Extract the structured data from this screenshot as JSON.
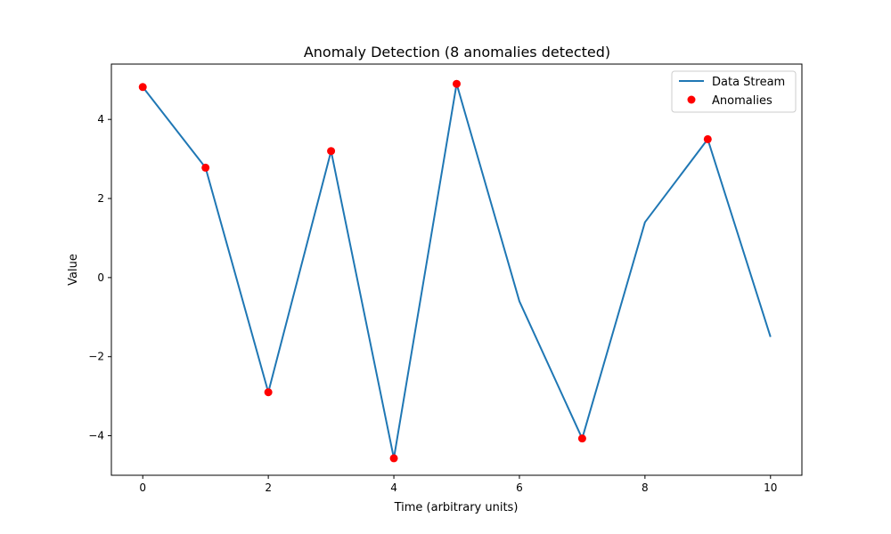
{
  "chart_data": {
    "type": "line",
    "title": "Anomaly Detection (8 anomalies detected)",
    "xlabel": "Time (arbitrary units)",
    "ylabel": "Value",
    "xlim": [
      -0.5,
      10.5
    ],
    "ylim": [
      -5.0,
      5.4
    ],
    "xticks": [
      0,
      2,
      4,
      6,
      8,
      10
    ],
    "yticks": [
      -4,
      -2,
      0,
      2,
      4
    ],
    "grid": false,
    "legend_position": "top-right",
    "series": [
      {
        "name": "Data Stream",
        "kind": "line",
        "color": "#1f77b4",
        "x": [
          0,
          1,
          2,
          3,
          4,
          5,
          6,
          7,
          8,
          9,
          10
        ],
        "y": [
          4.82,
          2.78,
          -2.9,
          3.2,
          -4.57,
          4.9,
          -0.6,
          -4.07,
          1.4,
          3.5,
          -1.5
        ]
      },
      {
        "name": "Anomalies",
        "kind": "scatter",
        "color": "#ff0000",
        "x": [
          0,
          1,
          2,
          3,
          4,
          5,
          7,
          9
        ],
        "y": [
          4.82,
          2.78,
          -2.9,
          3.2,
          -4.57,
          4.9,
          -4.07,
          3.5
        ]
      }
    ]
  }
}
